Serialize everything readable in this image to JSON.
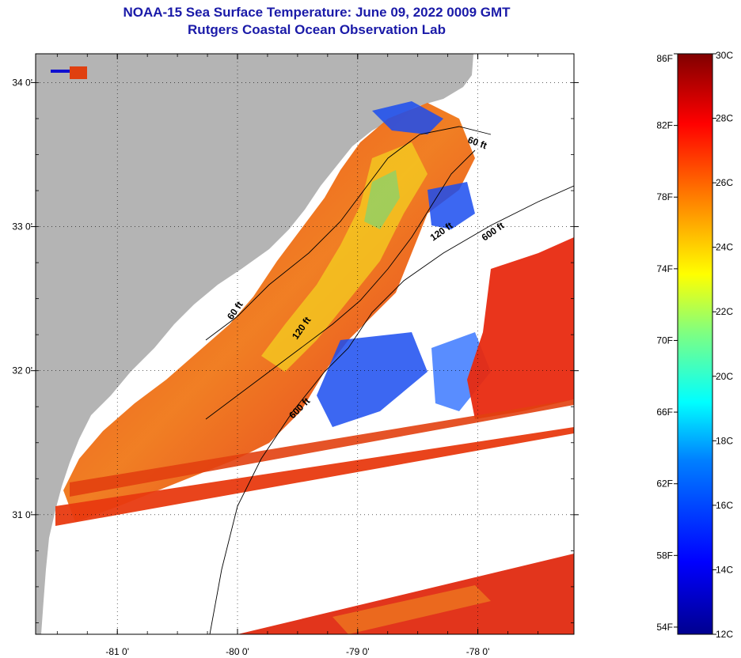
{
  "title": "NOAA-15 Sea Surface Temperature:  June 09, 2022 0009 GMT",
  "subtitle": "Rutgers Coastal Ocean Observation Lab",
  "map": {
    "lon_range": [
      -81.68,
      -77.2
    ],
    "lat_range": [
      30.17,
      34.2
    ],
    "lon_ticks": [
      -81,
      -80,
      -79,
      -78
    ],
    "lon_tick_labels": [
      "-81 0'",
      "-80 0'",
      "-79 0'",
      "-78 0'"
    ],
    "lat_ticks": [
      31,
      32,
      33,
      34
    ],
    "lat_tick_labels": [
      "31 0'",
      "32 0'",
      "33 0'",
      "34 0'"
    ],
    "grid": true,
    "land_color": "#b4b4b4",
    "water_nodata_color": "#ffffff",
    "contour_labels": [
      "60 ft",
      "120 ft",
      "600 ft",
      "60 ft",
      "120 ft",
      "600 ft"
    ]
  },
  "colorbar": {
    "fahrenheit_labels": [
      "86F",
      "82F",
      "78F",
      "74F",
      "70F",
      "66F",
      "62F",
      "58F",
      "54F"
    ],
    "celsius_labels": [
      "30C",
      "28C",
      "26C",
      "24C",
      "22C",
      "20C",
      "18C",
      "16C",
      "14C",
      "12C"
    ],
    "range_c": [
      12,
      30
    ],
    "colors": [
      "#00008f",
      "#0000ff",
      "#0080ff",
      "#00ffff",
      "#80ff80",
      "#ffff00",
      "#ff8000",
      "#ff0000",
      "#800000"
    ]
  }
}
